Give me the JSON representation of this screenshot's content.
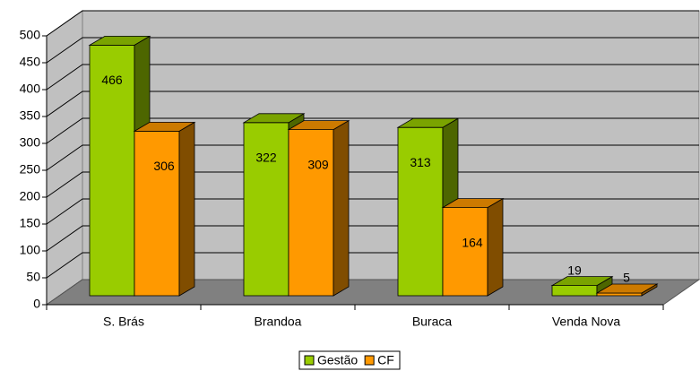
{
  "chart_data": {
    "type": "bar",
    "categories": [
      "S. Brás",
      "Brandoa",
      "Buraca",
      "Venda Nova"
    ],
    "series": [
      {
        "name": "Gestão",
        "color": "#99cc00",
        "values": [
          466,
          322,
          313,
          19
        ]
      },
      {
        "name": "CF",
        "color": "#ff9900",
        "values": [
          306,
          309,
          164,
          5
        ]
      }
    ],
    "ylim": [
      0,
      500
    ],
    "yticks": [
      0,
      50,
      100,
      150,
      200,
      250,
      300,
      350,
      400,
      450,
      500
    ],
    "grid": true,
    "legend": "bottom"
  }
}
